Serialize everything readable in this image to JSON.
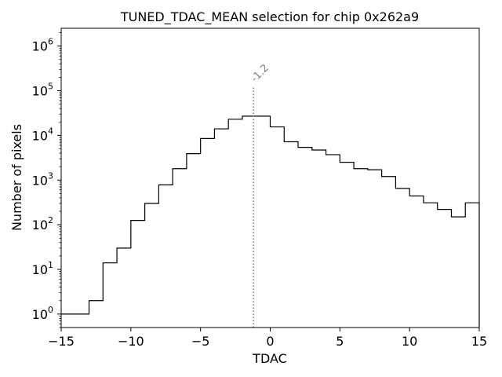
{
  "chart_data": {
    "type": "step-histogram",
    "title": "TUNED_TDAC_MEAN selection for chip 0x262a9",
    "xlabel": "TDAC",
    "ylabel": "Number of pixels",
    "xlim": [
      -15,
      15
    ],
    "ylim": [
      0.5,
      2500000
    ],
    "yscale": "log",
    "x_ticks": [
      -15,
      -10,
      -5,
      0,
      5,
      10,
      15
    ],
    "x_tick_labels": [
      "−15",
      "−10",
      "−5",
      "0",
      "5",
      "10",
      "15"
    ],
    "y_ticks": [
      {
        "value": 1,
        "base": "10",
        "exp": "0"
      },
      {
        "value": 10,
        "base": "10",
        "exp": "1"
      },
      {
        "value": 100,
        "base": "10",
        "exp": "2"
      },
      {
        "value": 1000,
        "base": "10",
        "exp": "3"
      },
      {
        "value": 10000,
        "base": "10",
        "exp": "4"
      },
      {
        "value": 100000,
        "base": "10",
        "exp": "5"
      },
      {
        "value": 1000000,
        "base": "10",
        "exp": "6"
      }
    ],
    "bin_edges": [
      -15,
      -14,
      -13,
      -12,
      -11,
      -10,
      -9,
      -8,
      -7,
      -6,
      -5,
      -4,
      -3,
      -2,
      -1,
      0,
      1,
      2,
      3,
      4,
      5,
      6,
      7,
      8,
      9,
      10,
      11,
      12,
      13,
      14,
      15
    ],
    "counts": [
      1,
      1,
      2,
      14,
      30,
      125,
      300,
      780,
      1800,
      3900,
      8500,
      14000,
      23000,
      27000,
      27000,
      15500,
      7200,
      5400,
      4700,
      3700,
      2500,
      1800,
      1700,
      1200,
      650,
      440,
      310,
      220,
      150,
      310
    ],
    "marker": {
      "x": -1.2,
      "label": "-1.2",
      "top": 120000
    },
    "line_color": "#000000",
    "marker_color": "#808080"
  }
}
